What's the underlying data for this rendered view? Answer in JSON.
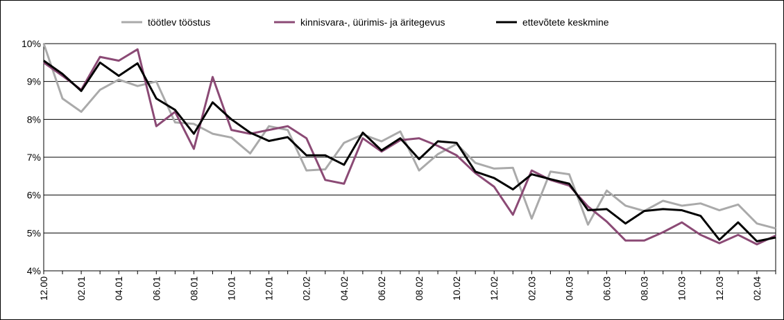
{
  "chart_data": {
    "type": "line",
    "categories": [
      "12.00",
      null,
      "02.01",
      null,
      "04.01",
      null,
      "06.01",
      null,
      "08.01",
      null,
      "10.01",
      null,
      "12.01",
      null,
      "02.02",
      null,
      "04.02",
      null,
      "06.02",
      null,
      "08.02",
      null,
      "10.02",
      null,
      "12.02",
      null,
      "02.03",
      null,
      "04.03",
      null,
      "06.03",
      null,
      "08.03",
      null,
      "10.03",
      null,
      "12.03",
      null,
      "02.04",
      null
    ],
    "series": [
      {
        "name": "töötlev tööstus",
        "color": "#aaaaaa",
        "values": [
          10.0,
          8.55,
          8.2,
          8.78,
          9.05,
          8.88,
          9.0,
          7.92,
          7.88,
          7.62,
          7.52,
          7.1,
          7.82,
          7.72,
          6.65,
          6.68,
          7.38,
          7.6,
          7.42,
          7.68,
          6.65,
          7.08,
          7.35,
          6.85,
          6.7,
          6.72,
          5.38,
          6.62,
          6.55,
          5.22,
          6.12,
          5.72,
          5.58,
          5.85,
          5.72,
          5.78,
          5.6,
          5.75,
          5.25,
          5.12
        ]
      },
      {
        "name": "kinnisvara-, üürimis- ja äritegevus",
        "color": "#8b4a75",
        "values": [
          9.5,
          9.15,
          8.78,
          9.65,
          9.55,
          9.85,
          7.82,
          8.2,
          7.22,
          9.12,
          7.72,
          7.62,
          7.72,
          7.82,
          7.5,
          6.4,
          6.3,
          7.5,
          7.15,
          7.45,
          7.5,
          7.3,
          7.05,
          6.58,
          6.22,
          5.48,
          6.65,
          6.4,
          6.25,
          5.7,
          5.3,
          4.8,
          4.8,
          5.02,
          5.28,
          4.95,
          4.73,
          4.95,
          4.7,
          4.93
        ]
      },
      {
        "name": "ettevõtete keskmine",
        "color": "#000000",
        "values": [
          9.55,
          9.2,
          8.75,
          9.5,
          9.15,
          9.48,
          8.55,
          8.25,
          7.62,
          8.45,
          8.0,
          7.65,
          7.43,
          7.53,
          7.05,
          7.05,
          6.8,
          7.65,
          7.18,
          7.5,
          6.95,
          7.42,
          7.38,
          6.62,
          6.45,
          6.15,
          6.55,
          6.42,
          6.3,
          5.6,
          5.63,
          5.25,
          5.58,
          5.63,
          5.6,
          5.45,
          4.82,
          5.28,
          4.78,
          4.88
        ]
      }
    ],
    "ylim": [
      4,
      10
    ],
    "yticks": [
      {
        "value": 4,
        "label": "4%"
      },
      {
        "value": 5,
        "label": "5%"
      },
      {
        "value": 6,
        "label": "6%"
      },
      {
        "value": 7,
        "label": "7%"
      },
      {
        "value": 8,
        "label": "8%"
      },
      {
        "value": 9,
        "label": "9%"
      },
      {
        "value": 10,
        "label": "10%"
      }
    ],
    "grid": true,
    "legend": "top"
  }
}
